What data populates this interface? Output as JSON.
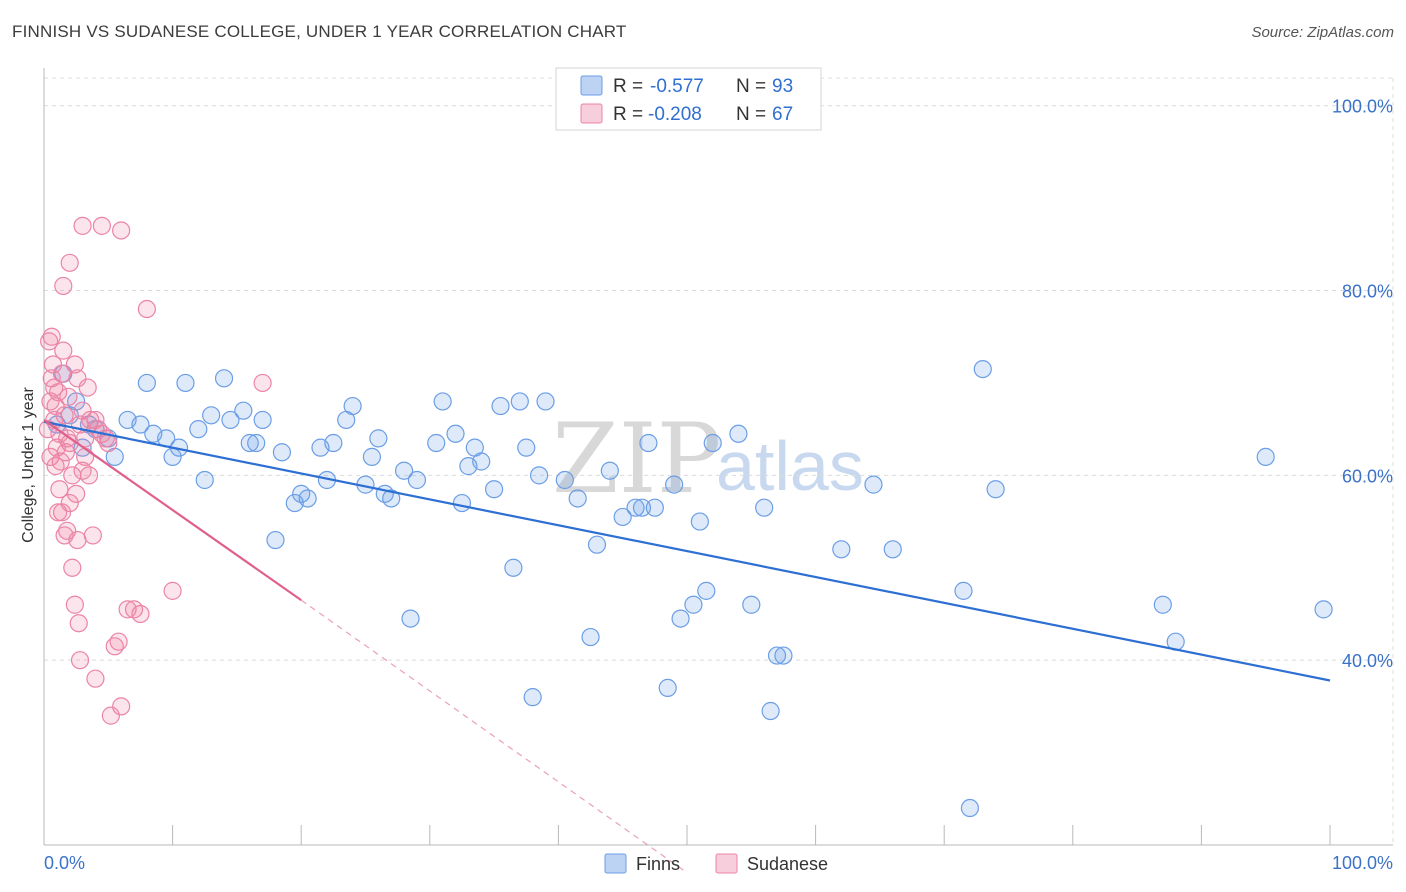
{
  "title": "FINNISH VS SUDANESE COLLEGE, UNDER 1 YEAR CORRELATION CHART",
  "source": "Source: ZipAtlas.com",
  "watermark": {
    "zip": "ZIP",
    "atlas": "atlas"
  },
  "colors": {
    "finns": "#6b9ee6",
    "finns_fill": "rgba(107,158,230,0.22)",
    "finns_line": "#2d6fd3",
    "sudanese": "#ec84a6",
    "sudanese_fill": "rgba(236,132,166,0.22)",
    "sudanese_line": "#e0608c",
    "grid": "#dcdcdc",
    "axis_text": "#3a72c8"
  },
  "legend": {
    "r_label": "R =",
    "n_label": "N =",
    "finns_r": "-0.577",
    "finns_n": "93",
    "sudanese_r": "-0.208",
    "sudanese_n": "67"
  },
  "bottom_legend": {
    "finns": "Finns",
    "sudanese": "Sudanese"
  },
  "chart_data": {
    "type": "scatter",
    "title": "FINNISH VS SUDANESE COLLEGE, UNDER 1 YEAR CORRELATION CHART",
    "xlabel": "",
    "ylabel": "College, Under 1 year",
    "xlim": [
      0,
      100
    ],
    "ylim": [
      20,
      103
    ],
    "x_tick_labels": [
      "0.0%",
      "100.0%"
    ],
    "y_ticks": [
      40,
      60,
      80,
      100
    ],
    "y_tick_labels": [
      "40.0%",
      "60.0%",
      "80.0%",
      "100.0%"
    ],
    "grid": true,
    "series": [
      {
        "name": "Finns",
        "r": -0.577,
        "n": 93,
        "trend": {
          "x0": 0,
          "y0": 65.8,
          "x1": 100,
          "y1": 37.8
        },
        "points": [
          [
            1.0,
            65.5
          ],
          [
            2.0,
            66.5
          ],
          [
            1.5,
            71.0
          ],
          [
            2.5,
            68.0
          ],
          [
            3.0,
            63.0
          ],
          [
            3.5,
            65.5
          ],
          [
            4.0,
            65.0
          ],
          [
            5.0,
            64.0
          ],
          [
            5.5,
            62.0
          ],
          [
            6.5,
            66.0
          ],
          [
            7.5,
            65.5
          ],
          [
            8.0,
            70.0
          ],
          [
            8.5,
            64.5
          ],
          [
            9.5,
            64.0
          ],
          [
            10.0,
            62.0
          ],
          [
            10.5,
            63.0
          ],
          [
            11.0,
            70.0
          ],
          [
            12.0,
            65.0
          ],
          [
            12.5,
            59.5
          ],
          [
            13.0,
            66.5
          ],
          [
            14.0,
            70.5
          ],
          [
            14.5,
            66.0
          ],
          [
            15.5,
            67.0
          ],
          [
            16.0,
            63.5
          ],
          [
            16.5,
            63.5
          ],
          [
            17.0,
            66.0
          ],
          [
            18.0,
            53.0
          ],
          [
            18.5,
            62.5
          ],
          [
            19.5,
            57.0
          ],
          [
            20.0,
            58.0
          ],
          [
            20.5,
            57.5
          ],
          [
            21.5,
            63.0
          ],
          [
            22.0,
            59.5
          ],
          [
            22.5,
            63.5
          ],
          [
            23.5,
            66.0
          ],
          [
            24.0,
            67.5
          ],
          [
            25.0,
            59.0
          ],
          [
            25.5,
            62.0
          ],
          [
            26.0,
            64.0
          ],
          [
            26.5,
            58.0
          ],
          [
            27.0,
            57.5
          ],
          [
            28.0,
            60.5
          ],
          [
            28.5,
            44.5
          ],
          [
            29.0,
            59.5
          ],
          [
            30.5,
            63.5
          ],
          [
            31.0,
            68.0
          ],
          [
            32.0,
            64.5
          ],
          [
            32.5,
            57.0
          ],
          [
            33.0,
            61.0
          ],
          [
            33.5,
            63.0
          ],
          [
            34.0,
            61.5
          ],
          [
            35.0,
            58.5
          ],
          [
            35.5,
            67.5
          ],
          [
            36.5,
            50.0
          ],
          [
            37.0,
            68.0
          ],
          [
            37.5,
            63.0
          ],
          [
            38.0,
            36.0
          ],
          [
            38.5,
            60.0
          ],
          [
            39.0,
            68.0
          ],
          [
            40.5,
            59.5
          ],
          [
            41.5,
            57.5
          ],
          [
            42.5,
            42.5
          ],
          [
            43.0,
            52.5
          ],
          [
            44.0,
            60.5
          ],
          [
            45.0,
            55.5
          ],
          [
            46.0,
            56.5
          ],
          [
            46.5,
            56.5
          ],
          [
            47.0,
            63.5
          ],
          [
            47.5,
            56.5
          ],
          [
            48.5,
            37.0
          ],
          [
            49.0,
            59.0
          ],
          [
            49.5,
            44.5
          ],
          [
            50.5,
            46.0
          ],
          [
            51.0,
            55.0
          ],
          [
            51.5,
            47.5
          ],
          [
            52.0,
            63.5
          ],
          [
            54.0,
            64.5
          ],
          [
            55.0,
            46.0
          ],
          [
            56.0,
            56.5
          ],
          [
            56.5,
            34.5
          ],
          [
            57.0,
            40.5
          ],
          [
            57.5,
            40.5
          ],
          [
            62.0,
            52.0
          ],
          [
            64.5,
            59.0
          ],
          [
            66.0,
            52.0
          ],
          [
            71.5,
            47.5
          ],
          [
            72.0,
            24.0
          ],
          [
            73.0,
            71.5
          ],
          [
            74.0,
            58.5
          ],
          [
            87.0,
            46.0
          ],
          [
            88.0,
            42.0
          ],
          [
            95.0,
            62.0
          ],
          [
            99.5,
            45.5
          ]
        ]
      },
      {
        "name": "Sudanese",
        "r": -0.208,
        "n": 67,
        "trend": {
          "x0": 0,
          "y0": 66.0,
          "x1": 20,
          "y1": 46.5,
          "dashed_to": {
            "x": 50,
            "y": 17.0
          }
        },
        "points": [
          [
            0.3,
            65.0
          ],
          [
            0.5,
            68.0
          ],
          [
            0.6,
            70.5
          ],
          [
            0.7,
            72.0
          ],
          [
            0.8,
            66.0
          ],
          [
            0.9,
            67.5
          ],
          [
            1.0,
            63.0
          ],
          [
            1.1,
            69.0
          ],
          [
            1.2,
            64.5
          ],
          [
            1.3,
            61.5
          ],
          [
            1.4,
            71.0
          ],
          [
            1.5,
            73.5
          ],
          [
            1.6,
            66.5
          ],
          [
            1.7,
            62.5
          ],
          [
            1.8,
            64.0
          ],
          [
            1.9,
            68.5
          ],
          [
            2.0,
            63.5
          ],
          [
            2.2,
            60.0
          ],
          [
            2.4,
            72.0
          ],
          [
            2.6,
            70.5
          ],
          [
            2.8,
            65.5
          ],
          [
            3.0,
            67.0
          ],
          [
            3.2,
            64.0
          ],
          [
            0.4,
            74.5
          ],
          [
            0.6,
            75.0
          ],
          [
            0.8,
            69.5
          ],
          [
            1.2,
            58.5
          ],
          [
            1.4,
            56.0
          ],
          [
            1.6,
            53.5
          ],
          [
            1.8,
            54.0
          ],
          [
            2.0,
            57.0
          ],
          [
            2.2,
            50.0
          ],
          [
            2.4,
            46.0
          ],
          [
            2.6,
            53.0
          ],
          [
            2.8,
            40.0
          ],
          [
            3.0,
            60.5
          ],
          [
            3.2,
            62.0
          ],
          [
            3.4,
            69.5
          ],
          [
            3.6,
            66.0
          ],
          [
            3.8,
            53.5
          ],
          [
            4.0,
            38.0
          ],
          [
            4.2,
            65.0
          ],
          [
            4.5,
            64.5
          ],
          [
            4.8,
            64.0
          ],
          [
            5.0,
            63.5
          ],
          [
            5.2,
            34.0
          ],
          [
            5.5,
            41.5
          ],
          [
            5.8,
            42.0
          ],
          [
            6.0,
            35.0
          ],
          [
            6.5,
            45.5
          ],
          [
            7.0,
            45.5
          ],
          [
            7.5,
            45.0
          ],
          [
            2.0,
            83.0
          ],
          [
            3.0,
            87.0
          ],
          [
            4.5,
            87.0
          ],
          [
            6.0,
            86.5
          ],
          [
            1.5,
            80.5
          ],
          [
            8.0,
            78.0
          ],
          [
            10.0,
            47.5
          ],
          [
            17.0,
            70.0
          ],
          [
            0.9,
            61.0
          ],
          [
            1.1,
            56.0
          ],
          [
            3.5,
            60.0
          ],
          [
            2.5,
            58.0
          ],
          [
            4.0,
            66.0
          ],
          [
            0.5,
            62.0
          ],
          [
            2.7,
            44.0
          ]
        ]
      }
    ]
  }
}
